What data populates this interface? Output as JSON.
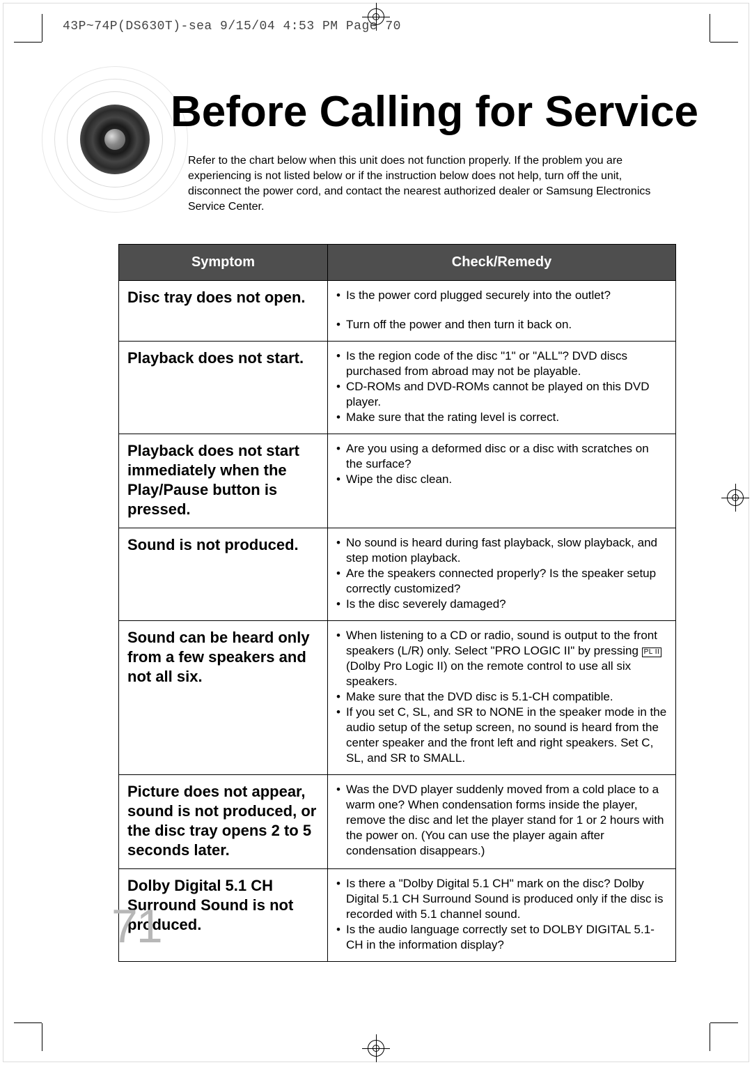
{
  "slug": "43P~74P(DS630T)-sea  9/15/04 4:53 PM  Page 70",
  "title": "Before Calling for Service",
  "intro": "Refer to the chart below when this unit does not function properly. If the problem you are experiencing is not listed below or if the instruction below does not help, turn off the unit, disconnect the power cord, and contact the nearest authorized dealer or Samsung Electronics Service Center.",
  "table": {
    "header_color": "#4e4e4e",
    "header_text_color": "#ffffff",
    "columns": {
      "symptom": "Symptom",
      "remedy": "Check/Remedy"
    },
    "rows": [
      {
        "symptom": "Disc tray does not open.",
        "remedy": [
          "Is the power cord plugged securely into the outlet?",
          "__GAP__",
          "Turn off the power and then turn it back on."
        ]
      },
      {
        "symptom": "Playback does not start.",
        "remedy": [
          "Is the region code of the disc \"1\" or \"ALL\"? DVD discs purchased from abroad may not be playable.",
          "CD-ROMs and DVD-ROMs cannot be played on this DVD player.",
          "Make sure that the rating level is correct."
        ]
      },
      {
        "symptom": "Playback does not start immediately when the Play/Pause button is pressed.",
        "remedy": [
          "Are you using a deformed disc or a disc with scratches on the surface?",
          "Wipe the disc clean."
        ]
      },
      {
        "symptom": "Sound is not produced.",
        "remedy": [
          "No sound is heard during fast playback, slow playback, and step motion playback.",
          "Are the speakers connected properly? Is the speaker setup correctly customized?",
          "Is the disc severely damaged?"
        ]
      },
      {
        "symptom": "Sound can be heard only from a few speakers and not all six.",
        "remedy": [
          "When listening to a CD or radio, sound is output to the front speakers (L/R) only. Select \"PRO LOGIC II\" by pressing __PLII__ (Dolby Pro Logic II) on the remote control to use all six speakers.",
          "Make sure that the DVD disc is 5.1-CH compatible.",
          "If you set C, SL, and SR to NONE in the speaker mode in the audio setup of the setup screen, no sound is heard from the center speaker and the front left and right speakers. Set C, SL, and SR to SMALL."
        ]
      },
      {
        "symptom": "Picture does not appear, sound is not produced, or the disc tray opens 2 to 5 seconds later.",
        "remedy": [
          "Was the DVD player suddenly moved from a cold place to a warm one? When condensation forms inside the player, remove the disc and let the player stand for 1 or 2 hours with the power on. (You can use the player again after condensation disappears.)"
        ]
      },
      {
        "symptom": "Dolby Digital 5.1 CH Surround Sound is not produced.",
        "remedy": [
          "Is there a \"Dolby Digital 5.1 CH\" mark on the disc? Dolby Digital 5.1 CH Surround Sound is produced only if the disc is recorded with 5.1 channel sound.",
          "Is the audio language correctly set to DOLBY DIGITAL 5.1-CH in the information display?"
        ]
      }
    ]
  },
  "page_number": "71",
  "plii_badge": "PL II"
}
